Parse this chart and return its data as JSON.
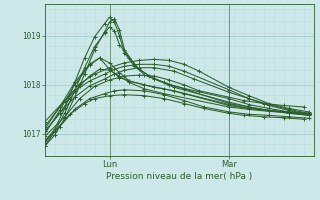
{
  "background_color": "#cce8e8",
  "line_color": "#2d5f2d",
  "grid_color_major": "#aacfcf",
  "grid_color_minor": "#bcdcdc",
  "title": "Pression niveau de la mer( hPa )",
  "xlabel_lun": "Lun",
  "xlabel_mar": "Mar",
  "ylabel_ticks": [
    1017,
    1018,
    1019
  ],
  "ylim": [
    1016.55,
    1019.65
  ],
  "xlim": [
    0,
    54
  ],
  "lun_x": 13,
  "mar_x": 37,
  "series": [
    [
      0,
      1016.75,
      2,
      1017.05,
      5,
      1017.4,
      8,
      1017.62,
      10,
      1017.72,
      13,
      1017.78,
      16,
      1017.8,
      20,
      1017.78,
      24,
      1017.72,
      28,
      1017.62,
      32,
      1017.52,
      37,
      1017.42,
      40,
      1017.38,
      44,
      1017.35,
      48,
      1017.33,
      52,
      1017.3
    ],
    [
      0,
      1016.85,
      3,
      1017.15,
      6,
      1017.5,
      9,
      1017.72,
      12,
      1017.82,
      14,
      1017.88,
      16,
      1017.9,
      20,
      1017.88,
      24,
      1017.8,
      28,
      1017.68,
      32,
      1017.55,
      37,
      1017.45,
      41,
      1017.4,
      45,
      1017.38,
      49,
      1017.35,
      53,
      1017.32
    ],
    [
      0,
      1016.95,
      4,
      1017.35,
      7,
      1017.72,
      10,
      1017.97,
      13,
      1018.1,
      16,
      1018.18,
      19,
      1018.2,
      22,
      1018.18,
      25,
      1018.1,
      28,
      1018.0,
      31,
      1017.88,
      37,
      1017.75,
      40,
      1017.68,
      44,
      1017.62,
      48,
      1017.58,
      52,
      1017.55
    ],
    [
      0,
      1017.05,
      3,
      1017.42,
      6,
      1017.75,
      9,
      1017.98,
      12,
      1018.12,
      14,
      1018.22,
      16,
      1018.3,
      19,
      1018.35,
      22,
      1018.35,
      26,
      1018.28,
      30,
      1018.12,
      37,
      1017.85,
      41,
      1017.72,
      45,
      1017.6,
      49,
      1017.5,
      53,
      1017.42
    ],
    [
      0,
      1017.15,
      3,
      1017.55,
      6,
      1017.88,
      9,
      1018.08,
      12,
      1018.22,
      14,
      1018.32,
      16,
      1018.38,
      19,
      1018.42,
      22,
      1018.42,
      25,
      1018.38,
      28,
      1018.28,
      37,
      1017.9,
      41,
      1017.72,
      45,
      1017.58,
      49,
      1017.48,
      53,
      1017.4
    ],
    [
      0,
      1017.25,
      4,
      1017.68,
      7,
      1018.02,
      10,
      1018.22,
      13,
      1018.35,
      16,
      1018.45,
      19,
      1018.5,
      22,
      1018.52,
      25,
      1018.5,
      28,
      1018.42,
      31,
      1018.28,
      37,
      1017.95,
      41,
      1017.78,
      45,
      1017.62,
      49,
      1017.52,
      53,
      1017.45
    ],
    [
      0,
      1017.1,
      3,
      1017.55,
      6,
      1018.05,
      9,
      1018.42,
      11,
      1018.55,
      13,
      1018.32,
      15,
      1018.15,
      17,
      1018.08,
      20,
      1018.0,
      24,
      1017.92,
      28,
      1017.82,
      37,
      1017.58,
      41,
      1017.52,
      45,
      1017.48,
      49,
      1017.45,
      53,
      1017.42
    ],
    [
      0,
      1017.0,
      3,
      1017.48,
      6,
      1018.0,
      9,
      1018.4,
      11,
      1018.55,
      13,
      1018.45,
      15,
      1018.25,
      17,
      1018.08,
      20,
      1018.0,
      22,
      1017.95,
      26,
      1017.88,
      37,
      1017.6,
      41,
      1017.52,
      45,
      1017.48,
      49,
      1017.44,
      53,
      1017.4
    ],
    [
      0,
      1017.05,
      3,
      1017.42,
      5,
      1017.72,
      7,
      1017.98,
      9,
      1018.18,
      11,
      1018.32,
      13,
      1018.3,
      15,
      1018.18,
      17,
      1018.05,
      20,
      1017.92,
      24,
      1017.82,
      37,
      1017.55,
      41,
      1017.5,
      45,
      1017.46,
      49,
      1017.43,
      53,
      1017.4
    ],
    [
      0,
      1016.75,
      2,
      1016.98,
      4,
      1017.32,
      6,
      1017.75,
      8,
      1018.22,
      10,
      1018.72,
      12,
      1019.08,
      13,
      1019.28,
      14,
      1019.35,
      15,
      1019.12,
      16,
      1018.72,
      18,
      1018.42,
      20,
      1018.2,
      24,
      1018.05,
      28,
      1017.92,
      37,
      1017.62,
      41,
      1017.55,
      45,
      1017.48,
      49,
      1017.42,
      53,
      1017.38
    ],
    [
      0,
      1016.82,
      2,
      1017.05,
      4,
      1017.42,
      6,
      1017.88,
      8,
      1018.35,
      10,
      1018.78,
      12,
      1019.05,
      13,
      1019.18,
      14,
      1019.1,
      15,
      1018.82,
      17,
      1018.55,
      19,
      1018.32,
      22,
      1018.12,
      26,
      1017.95,
      37,
      1017.65,
      41,
      1017.55,
      45,
      1017.48,
      49,
      1017.43,
      53,
      1017.38
    ],
    [
      0,
      1016.85,
      2,
      1017.1,
      4,
      1017.52,
      6,
      1018.05,
      8,
      1018.55,
      10,
      1018.98,
      12,
      1019.25,
      13,
      1019.38,
      14,
      1019.28,
      15,
      1019.0,
      16,
      1018.65,
      18,
      1018.38,
      21,
      1018.18,
      25,
      1018.0,
      37,
      1017.72,
      41,
      1017.6,
      45,
      1017.52,
      49,
      1017.45,
      53,
      1017.4
    ]
  ]
}
